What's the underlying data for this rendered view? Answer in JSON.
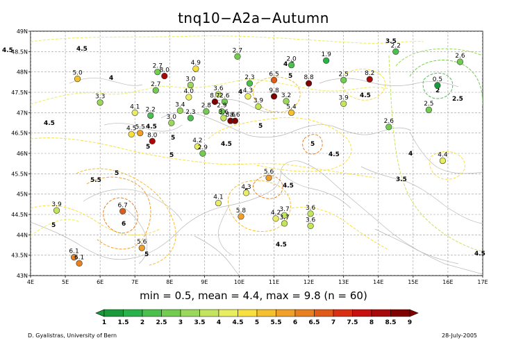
{
  "title": "tnq10−A2a−Autumn",
  "stats": "min = 0.5, mean = 4.4, max = 9.8 (n = 60)",
  "credit": "D. Gyalistras, University of Bern",
  "date": "28-July-2005",
  "map": {
    "lon_range": [
      4,
      17
    ],
    "lat_range": [
      43,
      49
    ],
    "x_ticks": [
      "4E",
      "5E",
      "6E",
      "7E",
      "8E",
      "9E",
      "10E",
      "11E",
      "12E",
      "13E",
      "14E",
      "15E",
      "16E",
      "17E"
    ],
    "y_ticks": [
      "43N",
      "43.5N",
      "44N",
      "44.5N",
      "45N",
      "45.5N",
      "46N",
      "46.5N",
      "47N",
      "47.5N",
      "48N",
      "48.5N",
      "49N"
    ],
    "grid": true
  },
  "colorbar": {
    "labels": [
      "1",
      "1.5",
      "2",
      "2.5",
      "3",
      "3.5",
      "4",
      "4.5",
      "5",
      "5.5",
      "6",
      "6.5",
      "7",
      "7.5",
      "8",
      "8.5",
      "9"
    ],
    "colors": [
      "#1a9a3a",
      "#2ab24a",
      "#4cc04c",
      "#72cc50",
      "#9ad85a",
      "#c2e45e",
      "#e8ee60",
      "#f8e040",
      "#f5c02e",
      "#f0a028",
      "#e98020",
      "#e05a18",
      "#d83010",
      "#c81010",
      "#a80808",
      "#800000"
    ]
  },
  "contours": [
    {
      "label": "4.5",
      "x": 3,
      "y": 75
    },
    {
      "label": "4",
      "x": 157,
      "y": 115
    },
    {
      "label": "4.5",
      "x": 63,
      "y": 180
    },
    {
      "label": "5",
      "x": 165,
      "y": 252
    },
    {
      "label": "5.5",
      "x": 130,
      "y": 262
    },
    {
      "label": "5",
      "x": 74,
      "y": 327
    },
    {
      "label": "6",
      "x": 175,
      "y": 325
    },
    {
      "label": "5",
      "x": 208,
      "y": 369
    },
    {
      "label": "5",
      "x": 210,
      "y": 214
    },
    {
      "label": "5",
      "x": 244,
      "y": 226
    },
    {
      "label": "4.5",
      "x": 210,
      "y": 185
    },
    {
      "label": "5",
      "x": 246,
      "y": 201
    },
    {
      "label": "4",
      "x": 343,
      "y": 135
    },
    {
      "label": "5",
      "x": 372,
      "y": 184
    },
    {
      "label": "4.5",
      "x": 318,
      "y": 210
    },
    {
      "label": "4.5",
      "x": 408,
      "y": 95
    },
    {
      "label": "5",
      "x": 415,
      "y": 112
    },
    {
      "label": "5",
      "x": 447,
      "y": 210
    },
    {
      "label": "4.5",
      "x": 473,
      "y": 225
    },
    {
      "label": "4.5",
      "x": 518,
      "y": 140
    },
    {
      "label": "5",
      "x": 352,
      "y": 278
    },
    {
      "label": "4.5",
      "x": 407,
      "y": 270
    },
    {
      "label": "4.5",
      "x": 397,
      "y": 355
    },
    {
      "label": "2",
      "x": 627,
      "y": 133
    },
    {
      "label": "2.5",
      "x": 651,
      "y": 145
    },
    {
      "label": "3.5",
      "x": 570,
      "y": 261
    },
    {
      "label": "4",
      "x": 588,
      "y": 224
    },
    {
      "label": "4.5",
      "x": 683,
      "y": 368
    },
    {
      "label": "3.5",
      "x": 555,
      "y": 62
    },
    {
      "label": "4.5",
      "x": 110,
      "y": 73
    }
  ],
  "stations": [
    {
      "lon": 5.35,
      "lat": 47.83,
      "value": 5.0
    },
    {
      "lon": 7.65,
      "lat": 48.0,
      "value": 2.7
    },
    {
      "lon": 7.85,
      "lat": 47.9,
      "value": 8.0
    },
    {
      "lon": 8.75,
      "lat": 48.08,
      "value": 4.9
    },
    {
      "lon": 9.95,
      "lat": 48.38,
      "value": 2.7
    },
    {
      "lon": 11.5,
      "lat": 48.17,
      "value": 2.0
    },
    {
      "lon": 12.5,
      "lat": 48.28,
      "value": 1.9
    },
    {
      "lon": 14.5,
      "lat": 48.5,
      "value": 2.2
    },
    {
      "lon": 16.35,
      "lat": 48.25,
      "value": 2.6
    },
    {
      "lon": 6.0,
      "lat": 47.25,
      "value": 3.3
    },
    {
      "lon": 7.6,
      "lat": 47.55,
      "value": 2.7
    },
    {
      "lon": 8.6,
      "lat": 47.68,
      "value": 3.0
    },
    {
      "lon": 8.55,
      "lat": 47.38,
      "value": 4.0
    },
    {
      "lon": 9.4,
      "lat": 47.45,
      "value": 3.6
    },
    {
      "lon": 10.3,
      "lat": 47.72,
      "value": 2.3
    },
    {
      "lon": 10.25,
      "lat": 47.4,
      "value": 4.3
    },
    {
      "lon": 11.0,
      "lat": 47.8,
      "value": 6.5
    },
    {
      "lon": 11.0,
      "lat": 47.4,
      "value": 9.8
    },
    {
      "lon": 11.35,
      "lat": 47.28,
      "value": 3.2
    },
    {
      "lon": 11.5,
      "lat": 47.0,
      "value": 5.4
    },
    {
      "lon": 12.0,
      "lat": 47.72,
      "value": 8.8
    },
    {
      "lon": 13.0,
      "lat": 47.8,
      "value": 2.5
    },
    {
      "lon": 13.0,
      "lat": 47.22,
      "value": 3.9
    },
    {
      "lon": 13.75,
      "lat": 47.82,
      "value": 8.2
    },
    {
      "lon": 15.7,
      "lat": 47.67,
      "value": 0.5
    },
    {
      "lon": 15.45,
      "lat": 47.07,
      "value": 2.5
    },
    {
      "lon": 14.3,
      "lat": 46.65,
      "value": 2.6
    },
    {
      "lon": 7.0,
      "lat": 47.0,
      "value": 4.1
    },
    {
      "lon": 7.45,
      "lat": 46.93,
      "value": 2.2
    },
    {
      "lon": 8.3,
      "lat": 47.05,
      "value": 3.4
    },
    {
      "lon": 8.05,
      "lat": 46.75,
      "value": 3.0
    },
    {
      "lon": 8.6,
      "lat": 46.87,
      "value": 2.3
    },
    {
      "lon": 9.05,
      "lat": 47.03,
      "value": 2.8
    },
    {
      "lon": 9.3,
      "lat": 47.27,
      "value": 8.7
    },
    {
      "lon": 9.58,
      "lat": 47.27,
      "value": 2.6
    },
    {
      "lon": 9.5,
      "lat": 47.03,
      "value": 2.9
    },
    {
      "lon": 9.55,
      "lat": 46.87,
      "value": 3.6
    },
    {
      "lon": 9.75,
      "lat": 46.8,
      "value": 8.6
    },
    {
      "lon": 9.88,
      "lat": 46.8,
      "value": 8.6
    },
    {
      "lon": 10.55,
      "lat": 47.15,
      "value": 3.9
    },
    {
      "lon": 6.9,
      "lat": 46.47,
      "value": 4.5
    },
    {
      "lon": 7.15,
      "lat": 46.5,
      "value": 5.5
    },
    {
      "lon": 7.5,
      "lat": 46.3,
      "value": 8.0
    },
    {
      "lon": 8.8,
      "lat": 46.17,
      "value": 4.2
    },
    {
      "lon": 8.95,
      "lat": 46.0,
      "value": 2.9
    },
    {
      "lon": 10.85,
      "lat": 45.4,
      "value": 5.6
    },
    {
      "lon": 15.85,
      "lat": 45.82,
      "value": 4.4
    },
    {
      "lon": 10.2,
      "lat": 45.03,
      "value": 4.3
    },
    {
      "lon": 9.4,
      "lat": 44.78,
      "value": 4.1
    },
    {
      "lon": 10.05,
      "lat": 44.45,
      "value": 5.8
    },
    {
      "lon": 11.3,
      "lat": 44.48,
      "value": 3.7
    },
    {
      "lon": 11.05,
      "lat": 44.4,
      "value": 4.2
    },
    {
      "lon": 11.3,
      "lat": 44.28,
      "value": 3.7
    },
    {
      "lon": 12.05,
      "lat": 44.52,
      "value": 3.6
    },
    {
      "lon": 12.05,
      "lat": 44.22,
      "value": 3.6
    },
    {
      "lon": 6.65,
      "lat": 44.58,
      "value": 6.7
    },
    {
      "lon": 4.75,
      "lat": 44.6,
      "value": 3.9
    },
    {
      "lon": 7.2,
      "lat": 43.68,
      "value": 5.6
    },
    {
      "lon": 5.25,
      "lat": 43.45,
      "value": 6.1
    },
    {
      "lon": 5.4,
      "lat": 43.3,
      "value": 6.1
    }
  ]
}
